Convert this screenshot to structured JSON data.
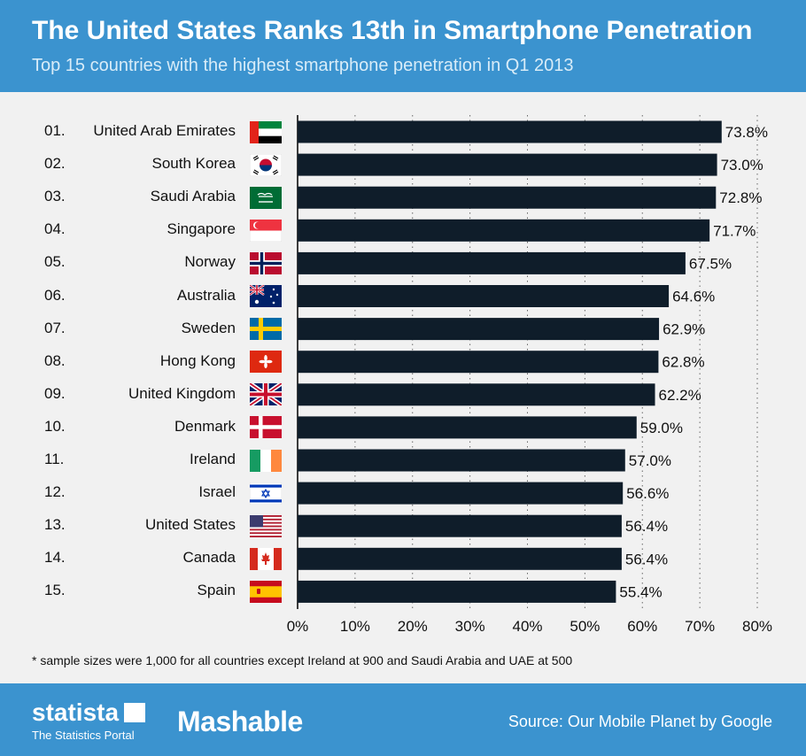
{
  "header": {
    "title": "The United States Ranks 13th in Smartphone Penetration",
    "subtitle": "Top 15 countries with the highest smartphone penetration in Q1 2013"
  },
  "footnote": "* sample sizes were 1,000 for all countries except Ireland at 900 and Saudi Arabia and UAE at 500",
  "footer": {
    "logo_text": "statista",
    "logo_sub": "The Statistics Portal",
    "partner": "Mashable",
    "source": "Source: Our Mobile Planet by Google"
  },
  "colors": {
    "header": "#3b93cf",
    "bar": "#0f1d2a",
    "background": "#f1f1f1"
  },
  "rows": [
    {
      "rank": "01.",
      "country": "United Arab Emirates",
      "flag": "uae-flag"
    },
    {
      "rank": "02.",
      "country": "South Korea",
      "flag": "south-korea-flag"
    },
    {
      "rank": "03.",
      "country": "Saudi Arabia",
      "flag": "saudi-arabia-flag"
    },
    {
      "rank": "04.",
      "country": "Singapore",
      "flag": "singapore-flag"
    },
    {
      "rank": "05.",
      "country": "Norway",
      "flag": "norway-flag"
    },
    {
      "rank": "06.",
      "country": "Australia",
      "flag": "australia-flag"
    },
    {
      "rank": "07.",
      "country": "Sweden",
      "flag": "sweden-flag"
    },
    {
      "rank": "08.",
      "country": "Hong Kong",
      "flag": "hong-kong-flag"
    },
    {
      "rank": "09.",
      "country": "United Kingdom",
      "flag": "uk-flag"
    },
    {
      "rank": "10.",
      "country": "Denmark",
      "flag": "denmark-flag"
    },
    {
      "rank": "11.",
      "country": "Ireland",
      "flag": "ireland-flag"
    },
    {
      "rank": "12.",
      "country": "Israel",
      "flag": "israel-flag"
    },
    {
      "rank": "13.",
      "country": "United States",
      "flag": "usa-flag"
    },
    {
      "rank": "14.",
      "country": "Canada",
      "flag": "canada-flag"
    },
    {
      "rank": "15.",
      "country": "Spain",
      "flag": "spain-flag"
    }
  ],
  "chart_data": {
    "type": "bar",
    "orientation": "horizontal",
    "title": "The United States Ranks 13th in Smartphone Penetration",
    "subtitle": "Top 15 countries with the highest smartphone penetration in Q1 2013",
    "categories": [
      "United Arab Emirates",
      "South Korea",
      "Saudi Arabia",
      "Singapore",
      "Norway",
      "Australia",
      "Sweden",
      "Hong Kong",
      "United Kingdom",
      "Denmark",
      "Ireland",
      "Israel",
      "United States",
      "Canada",
      "Spain"
    ],
    "values": [
      73.8,
      73.0,
      72.8,
      71.7,
      67.5,
      64.6,
      62.9,
      62.8,
      62.2,
      59.0,
      57.0,
      56.6,
      56.4,
      56.4,
      55.4
    ],
    "value_labels": [
      "73.8%",
      "73.0%",
      "72.8%",
      "71.7%",
      "67.5%",
      "64.6%",
      "62.9%",
      "62.8%",
      "62.2%",
      "59.0%",
      "57.0%",
      "56.6%",
      "56.4%",
      "56.4%",
      "55.4%"
    ],
    "xlim": [
      0,
      80
    ],
    "ticks": [
      0,
      10,
      20,
      30,
      40,
      50,
      60,
      70,
      80
    ],
    "tick_labels": [
      "0%",
      "10%",
      "20%",
      "30%",
      "40%",
      "50%",
      "60%",
      "70%",
      "80%"
    ],
    "grid": "vertical dotted",
    "xlabel": "",
    "ylabel": ""
  }
}
